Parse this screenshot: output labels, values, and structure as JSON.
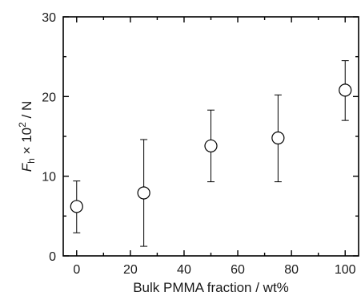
{
  "chart_data": {
    "type": "scatter",
    "xlabel": "Bulk PMMA fraction / wt%",
    "ylabel": {
      "symbol": "F",
      "subscript": "h",
      "multiplier": " × 10",
      "superscript": "2",
      "unit": " / N"
    },
    "xlim": [
      -5,
      105
    ],
    "ylim": [
      0,
      30
    ],
    "x_ticks": [
      0,
      20,
      40,
      60,
      80,
      100
    ],
    "y_ticks": [
      0,
      10,
      20,
      30
    ],
    "x_minor_step": 10,
    "y_minor_step": 5,
    "grid": false,
    "legend": "none",
    "marker": "open-circle",
    "series": [
      {
        "points": [
          {
            "x": 0,
            "y": 6.2,
            "err_low": 2.9,
            "err_high": 9.4
          },
          {
            "x": 25,
            "y": 7.9,
            "err_low": 1.2,
            "err_high": 14.6
          },
          {
            "x": 50,
            "y": 13.8,
            "err_low": 9.3,
            "err_high": 18.3
          },
          {
            "x": 75,
            "y": 14.8,
            "err_low": 9.3,
            "err_high": 20.2
          },
          {
            "x": 100,
            "y": 20.8,
            "err_low": 17.0,
            "err_high": 24.5
          }
        ]
      }
    ]
  }
}
